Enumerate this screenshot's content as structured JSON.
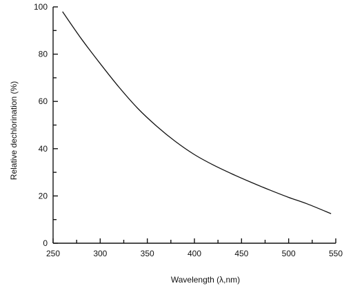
{
  "chart_data": {
    "type": "line",
    "xlabel": "Wavelength  (λ,nm)",
    "ylabel": "Relative dechlorination (%)",
    "xlim": [
      250,
      550
    ],
    "ylim": [
      0,
      100
    ],
    "x_ticks": [
      250,
      300,
      350,
      400,
      450,
      500,
      550
    ],
    "x_minor_ticks": [
      275,
      325,
      375,
      425,
      475,
      525
    ],
    "y_ticks": [
      0,
      20,
      40,
      60,
      80,
      100
    ],
    "y_minor_ticks": [
      10,
      30,
      50,
      70,
      90
    ],
    "grid": false,
    "series": [
      {
        "color": "#111111",
        "x": [
          260,
          280,
          300,
          320,
          340,
          360,
          380,
          400,
          420,
          440,
          460,
          480,
          500,
          520,
          545
        ],
        "y": [
          98,
          86.5,
          76,
          66,
          57,
          49.5,
          43,
          37.5,
          33.1,
          29.3,
          25.8,
          22.5,
          19.4,
          16.6,
          12.5
        ]
      }
    ]
  }
}
